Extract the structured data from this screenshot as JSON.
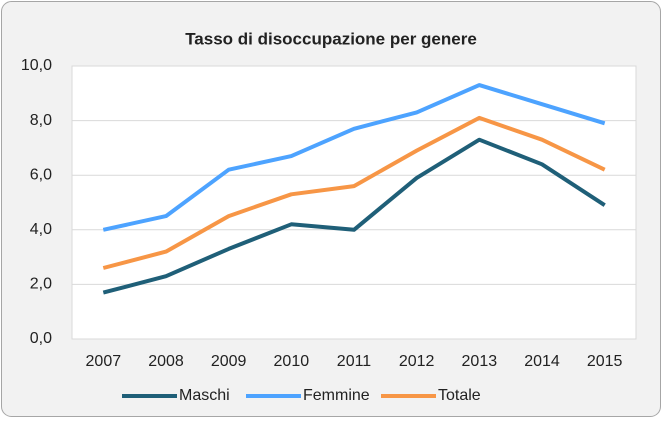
{
  "chart_data": {
    "type": "line",
    "title": "Tasso di disoccupazione per genere",
    "categories": [
      "2007",
      "2008",
      "2009",
      "2010",
      "2011",
      "2012",
      "2013",
      "2014",
      "2015"
    ],
    "series": [
      {
        "name": "Maschi",
        "color": "#1f5f78",
        "values": [
          1.7,
          2.3,
          3.3,
          4.2,
          4.0,
          5.9,
          7.3,
          6.4,
          4.9
        ]
      },
      {
        "name": "Femmine",
        "color": "#4da3ff",
        "values": [
          4.0,
          4.5,
          6.2,
          6.7,
          7.7,
          8.3,
          9.3,
          8.6,
          7.9
        ]
      },
      {
        "name": "Totale",
        "color": "#f79646",
        "values": [
          2.6,
          3.2,
          4.5,
          5.3,
          5.6,
          6.9,
          8.1,
          7.3,
          6.2
        ]
      }
    ],
    "ylim": [
      0,
      10
    ],
    "yticks": [
      {
        "value": 0,
        "label": "0,0"
      },
      {
        "value": 2,
        "label": "2,0"
      },
      {
        "value": 4,
        "label": "4,0"
      },
      {
        "value": 6,
        "label": "6,0"
      },
      {
        "value": 8,
        "label": "8,0"
      },
      {
        "value": 10,
        "label": "10,0"
      }
    ],
    "grid": true,
    "legend": "bottom"
  }
}
